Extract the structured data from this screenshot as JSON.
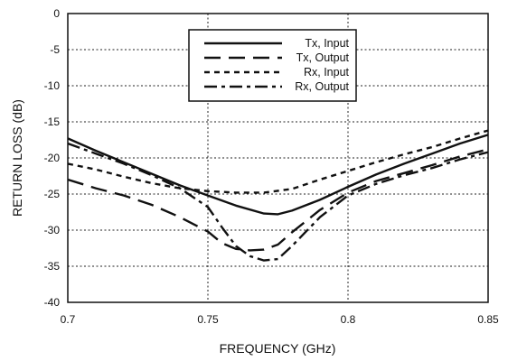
{
  "chart_data": {
    "type": "line",
    "title": "",
    "xlabel": "FREQUENCY (GHz)",
    "ylabel": "RETURN LOSS (dB)",
    "xlim": [
      0.7,
      0.85
    ],
    "ylim": [
      -40,
      0
    ],
    "x_ticks": [
      0.7,
      0.75,
      0.8,
      0.85
    ],
    "x_tick_labels": [
      "0.7",
      "0.75",
      "0.8",
      "0.85"
    ],
    "y_ticks": [
      0,
      -5,
      -10,
      -15,
      -20,
      -25,
      -30,
      -35,
      -40
    ],
    "y_tick_labels": [
      "0",
      "-5",
      "-10",
      "-15",
      "-20",
      "-25",
      "-30",
      "-35",
      "-40"
    ],
    "grid": true,
    "legend_position": "top-center",
    "series": [
      {
        "name": "Tx, Input",
        "style": "solid",
        "points": [
          [
            0.7,
            -17.3
          ],
          [
            0.71,
            -19.0
          ],
          [
            0.72,
            -20.6
          ],
          [
            0.73,
            -22.2
          ],
          [
            0.74,
            -23.8
          ],
          [
            0.75,
            -25.2
          ],
          [
            0.76,
            -26.6
          ],
          [
            0.77,
            -27.7
          ],
          [
            0.775,
            -27.8
          ],
          [
            0.78,
            -27.3
          ],
          [
            0.79,
            -25.8
          ],
          [
            0.8,
            -24.0
          ],
          [
            0.81,
            -22.3
          ],
          [
            0.82,
            -20.8
          ],
          [
            0.83,
            -19.4
          ],
          [
            0.84,
            -18.0
          ],
          [
            0.85,
            -16.8
          ]
        ]
      },
      {
        "name": "Tx, Output",
        "style": "long-dash",
        "points": [
          [
            0.7,
            -23.0
          ],
          [
            0.71,
            -24.2
          ],
          [
            0.72,
            -25.2
          ],
          [
            0.73,
            -26.5
          ],
          [
            0.74,
            -28.2
          ],
          [
            0.75,
            -30.2
          ],
          [
            0.755,
            -31.8
          ],
          [
            0.76,
            -32.6
          ],
          [
            0.765,
            -32.8
          ],
          [
            0.77,
            -32.7
          ],
          [
            0.775,
            -32.0
          ],
          [
            0.78,
            -30.3
          ],
          [
            0.79,
            -27.2
          ],
          [
            0.8,
            -24.8
          ],
          [
            0.81,
            -23.2
          ],
          [
            0.82,
            -22.1
          ],
          [
            0.83,
            -21.0
          ],
          [
            0.84,
            -19.8
          ],
          [
            0.85,
            -18.8
          ]
        ]
      },
      {
        "name": "Rx, Input",
        "style": "short-dash",
        "points": [
          [
            0.7,
            -20.8
          ],
          [
            0.71,
            -21.6
          ],
          [
            0.72,
            -22.6
          ],
          [
            0.73,
            -23.5
          ],
          [
            0.74,
            -24.2
          ],
          [
            0.75,
            -24.6
          ],
          [
            0.76,
            -24.8
          ],
          [
            0.77,
            -24.8
          ],
          [
            0.78,
            -24.3
          ],
          [
            0.79,
            -23.0
          ],
          [
            0.8,
            -21.8
          ],
          [
            0.81,
            -20.6
          ],
          [
            0.82,
            -19.5
          ],
          [
            0.83,
            -18.5
          ],
          [
            0.84,
            -17.3
          ],
          [
            0.85,
            -16.2
          ]
        ]
      },
      {
        "name": "Rx, Output",
        "style": "dash-dot",
        "points": [
          [
            0.7,
            -18.0
          ],
          [
            0.71,
            -19.4
          ],
          [
            0.72,
            -20.8
          ],
          [
            0.73,
            -22.4
          ],
          [
            0.74,
            -24.2
          ],
          [
            0.75,
            -26.8
          ],
          [
            0.755,
            -29.6
          ],
          [
            0.76,
            -32.2
          ],
          [
            0.765,
            -33.6
          ],
          [
            0.77,
            -34.2
          ],
          [
            0.775,
            -34.0
          ],
          [
            0.78,
            -32.2
          ],
          [
            0.79,
            -28.2
          ],
          [
            0.8,
            -25.2
          ],
          [
            0.81,
            -23.6
          ],
          [
            0.82,
            -22.4
          ],
          [
            0.83,
            -21.4
          ],
          [
            0.84,
            -20.2
          ],
          [
            0.85,
            -19.2
          ]
        ]
      }
    ]
  }
}
